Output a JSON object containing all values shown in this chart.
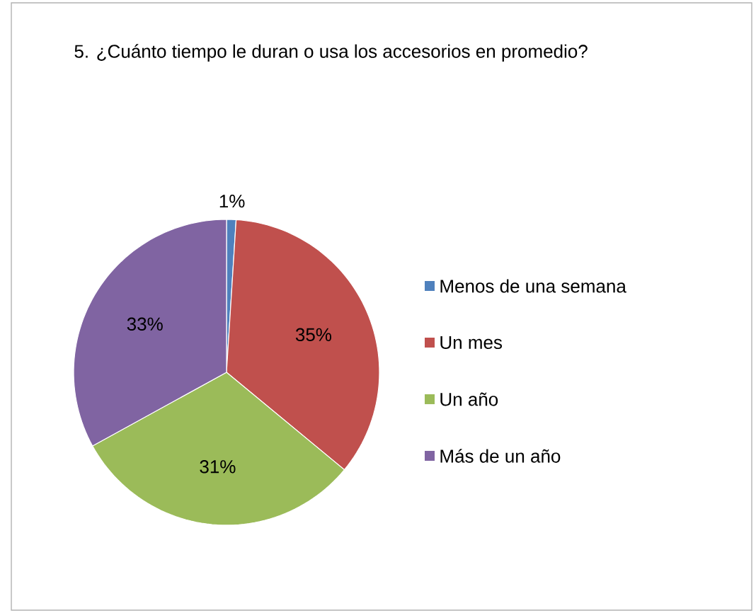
{
  "chart_data": {
    "type": "pie",
    "title": "5. ¿Cuánto tiempo le duran o usa los accesorios en promedio?",
    "categories": [
      "Menos de una semana",
      "Un mes",
      "Un año",
      "Más de un año"
    ],
    "values": [
      1,
      35,
      31,
      33
    ],
    "colors": [
      "#4f81bd",
      "#c0504d",
      "#9bbb59",
      "#8064a2"
    ],
    "value_labels": [
      "1%",
      "35%",
      "31%",
      "33%"
    ],
    "legend": "right"
  }
}
